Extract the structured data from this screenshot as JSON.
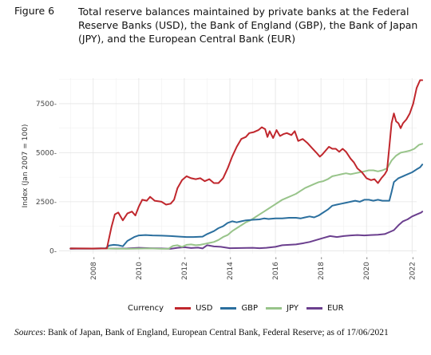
{
  "figure_label": "Figure 6",
  "figure_title": "Total reserve balances maintained by private banks at the Federal Reserve Banks (USD), the Bank of England (GBP), the Bank of Japan (JPY), and the European Central Bank (EUR)",
  "sources": {
    "label": "Sources",
    "text": ": Bank of Japan, Bank of England, European Central Bank, Federal Reserve; as of 17/06/2021"
  },
  "legend_title": "Currency",
  "chart_data": {
    "type": "line",
    "title": "",
    "xlabel": "",
    "ylabel": "Index (Jan 2007 = 100)",
    "xlim": [
      2006.5,
      2022.2
    ],
    "ylim": [
      -150,
      8800
    ],
    "x_ticks": [
      2008,
      2010,
      2012,
      2014,
      2016,
      2018,
      2020,
      2022
    ],
    "y_ticks": [
      0,
      2500,
      5000,
      7500
    ],
    "y_tick_labels": [
      "0-",
      "2500-",
      "5000-",
      "7500-"
    ],
    "grid": true,
    "legend_position": "bottom",
    "series": [
      {
        "name": "USD",
        "color": "#c0272d",
        "points": [
          [
            2007.0,
            120
          ],
          [
            2008.0,
            115
          ],
          [
            2008.6,
            120
          ],
          [
            2008.8,
            1200
          ],
          [
            2008.95,
            1850
          ],
          [
            2009.1,
            1950
          ],
          [
            2009.3,
            1550
          ],
          [
            2009.5,
            1900
          ],
          [
            2009.7,
            2000
          ],
          [
            2009.85,
            1800
          ],
          [
            2010.0,
            2250
          ],
          [
            2010.15,
            2600
          ],
          [
            2010.35,
            2550
          ],
          [
            2010.5,
            2750
          ],
          [
            2010.7,
            2550
          ],
          [
            2011.0,
            2500
          ],
          [
            2011.2,
            2350
          ],
          [
            2011.4,
            2400
          ],
          [
            2011.55,
            2600
          ],
          [
            2011.7,
            3200
          ],
          [
            2011.9,
            3600
          ],
          [
            2012.1,
            3800
          ],
          [
            2012.3,
            3700
          ],
          [
            2012.5,
            3650
          ],
          [
            2012.7,
            3700
          ],
          [
            2012.9,
            3550
          ],
          [
            2013.1,
            3650
          ],
          [
            2013.3,
            3450
          ],
          [
            2013.5,
            3450
          ],
          [
            2013.7,
            3700
          ],
          [
            2013.9,
            4200
          ],
          [
            2014.1,
            4800
          ],
          [
            2014.3,
            5300
          ],
          [
            2014.5,
            5700
          ],
          [
            2014.7,
            5800
          ],
          [
            2014.85,
            6000
          ],
          [
            2015.05,
            6050
          ],
          [
            2015.25,
            6150
          ],
          [
            2015.4,
            6300
          ],
          [
            2015.55,
            6200
          ],
          [
            2015.65,
            5800
          ],
          [
            2015.75,
            6100
          ],
          [
            2015.9,
            5750
          ],
          [
            2016.05,
            6150
          ],
          [
            2016.2,
            5850
          ],
          [
            2016.35,
            5950
          ],
          [
            2016.5,
            6000
          ],
          [
            2016.7,
            5900
          ],
          [
            2016.85,
            6100
          ],
          [
            2017.0,
            5600
          ],
          [
            2017.2,
            5700
          ],
          [
            2017.4,
            5500
          ],
          [
            2017.6,
            5250
          ],
          [
            2017.8,
            5000
          ],
          [
            2017.95,
            4800
          ],
          [
            2018.05,
            4900
          ],
          [
            2018.2,
            5100
          ],
          [
            2018.35,
            5300
          ],
          [
            2018.5,
            5200
          ],
          [
            2018.65,
            5200
          ],
          [
            2018.8,
            5050
          ],
          [
            2018.95,
            5200
          ],
          [
            2019.1,
            5050
          ],
          [
            2019.3,
            4700
          ],
          [
            2019.45,
            4500
          ],
          [
            2019.6,
            4200
          ],
          [
            2019.8,
            4000
          ],
          [
            2020.0,
            3700
          ],
          [
            2020.2,
            3600
          ],
          [
            2020.35,
            3650
          ],
          [
            2020.5,
            3450
          ],
          [
            2020.65,
            3700
          ],
          [
            2020.8,
            3900
          ],
          [
            2020.9,
            4100
          ],
          [
            2021.0,
            5300
          ],
          [
            2021.1,
            6500
          ],
          [
            2021.2,
            7000
          ],
          [
            2021.3,
            6600
          ],
          [
            2021.4,
            6500
          ],
          [
            2021.5,
            6250
          ],
          [
            2021.6,
            6500
          ],
          [
            2021.75,
            6700
          ],
          [
            2021.9,
            7000
          ],
          [
            2022.05,
            7500
          ],
          [
            2022.2,
            8300
          ],
          [
            2022.35,
            8700
          ],
          [
            2022.45,
            8700
          ]
        ]
      },
      {
        "name": "GBP",
        "color": "#2b6f9e",
        "points": [
          [
            2007.0,
            120
          ],
          [
            2008.0,
            115
          ],
          [
            2008.55,
            125
          ],
          [
            2008.7,
            270
          ],
          [
            2008.9,
            300
          ],
          [
            2009.1,
            280
          ],
          [
            2009.3,
            230
          ],
          [
            2009.5,
            500
          ],
          [
            2009.8,
            700
          ],
          [
            2010.0,
            780
          ],
          [
            2010.3,
            800
          ],
          [
            2010.6,
            780
          ],
          [
            2011.0,
            770
          ],
          [
            2011.4,
            750
          ],
          [
            2011.8,
            720
          ],
          [
            2012.1,
            700
          ],
          [
            2012.4,
            700
          ],
          [
            2012.8,
            720
          ],
          [
            2013.0,
            850
          ],
          [
            2013.3,
            1000
          ],
          [
            2013.5,
            1150
          ],
          [
            2013.7,
            1250
          ],
          [
            2013.9,
            1420
          ],
          [
            2014.1,
            1500
          ],
          [
            2014.3,
            1450
          ],
          [
            2014.5,
            1500
          ],
          [
            2014.7,
            1550
          ],
          [
            2015.0,
            1580
          ],
          [
            2015.3,
            1600
          ],
          [
            2015.5,
            1650
          ],
          [
            2015.7,
            1620
          ],
          [
            2016.0,
            1650
          ],
          [
            2016.3,
            1650
          ],
          [
            2016.6,
            1680
          ],
          [
            2016.9,
            1680
          ],
          [
            2017.1,
            1650
          ],
          [
            2017.3,
            1700
          ],
          [
            2017.5,
            1750
          ],
          [
            2017.7,
            1700
          ],
          [
            2017.9,
            1800
          ],
          [
            2018.1,
            1950
          ],
          [
            2018.3,
            2100
          ],
          [
            2018.5,
            2300
          ],
          [
            2018.7,
            2350
          ],
          [
            2018.9,
            2400
          ],
          [
            2019.1,
            2450
          ],
          [
            2019.3,
            2500
          ],
          [
            2019.5,
            2550
          ],
          [
            2019.7,
            2500
          ],
          [
            2019.9,
            2600
          ],
          [
            2020.1,
            2600
          ],
          [
            2020.3,
            2550
          ],
          [
            2020.5,
            2600
          ],
          [
            2020.7,
            2550
          ],
          [
            2020.9,
            2550
          ],
          [
            2021.0,
            2550
          ],
          [
            2021.1,
            3000
          ],
          [
            2021.2,
            3500
          ],
          [
            2021.4,
            3700
          ],
          [
            2021.6,
            3800
          ],
          [
            2021.8,
            3900
          ],
          [
            2022.0,
            4000
          ],
          [
            2022.2,
            4150
          ],
          [
            2022.35,
            4250
          ],
          [
            2022.45,
            4400
          ]
        ]
      },
      {
        "name": "JPY",
        "color": "#98c48a",
        "points": [
          [
            2007.0,
            120
          ],
          [
            2007.6,
            110
          ],
          [
            2008.0,
            110
          ],
          [
            2008.6,
            115
          ],
          [
            2008.8,
            110
          ],
          [
            2009.0,
            105
          ],
          [
            2009.5,
            100
          ],
          [
            2010.0,
            110
          ],
          [
            2010.5,
            120
          ],
          [
            2011.0,
            100
          ],
          [
            2011.3,
            100
          ],
          [
            2011.5,
            250
          ],
          [
            2011.7,
            280
          ],
          [
            2011.9,
            200
          ],
          [
            2012.1,
            300
          ],
          [
            2012.3,
            320
          ],
          [
            2012.5,
            280
          ],
          [
            2012.7,
            300
          ],
          [
            2012.9,
            350
          ],
          [
            2013.1,
            400
          ],
          [
            2013.3,
            450
          ],
          [
            2013.5,
            550
          ],
          [
            2013.7,
            700
          ],
          [
            2013.9,
            800
          ],
          [
            2014.1,
            1000
          ],
          [
            2014.3,
            1150
          ],
          [
            2014.5,
            1300
          ],
          [
            2014.7,
            1450
          ],
          [
            2014.9,
            1550
          ],
          [
            2015.1,
            1700
          ],
          [
            2015.3,
            1850
          ],
          [
            2015.5,
            2000
          ],
          [
            2015.7,
            2150
          ],
          [
            2015.9,
            2300
          ],
          [
            2016.1,
            2450
          ],
          [
            2016.3,
            2600
          ],
          [
            2016.5,
            2700
          ],
          [
            2016.7,
            2800
          ],
          [
            2016.9,
            2900
          ],
          [
            2017.1,
            3050
          ],
          [
            2017.3,
            3200
          ],
          [
            2017.5,
            3300
          ],
          [
            2017.7,
            3400
          ],
          [
            2017.9,
            3500
          ],
          [
            2018.1,
            3550
          ],
          [
            2018.3,
            3650
          ],
          [
            2018.5,
            3800
          ],
          [
            2018.7,
            3850
          ],
          [
            2018.9,
            3900
          ],
          [
            2019.1,
            3950
          ],
          [
            2019.3,
            3900
          ],
          [
            2019.5,
            3950
          ],
          [
            2019.7,
            4000
          ],
          [
            2019.9,
            4050
          ],
          [
            2020.1,
            4100
          ],
          [
            2020.3,
            4100
          ],
          [
            2020.5,
            4050
          ],
          [
            2020.7,
            4100
          ],
          [
            2020.9,
            4200
          ],
          [
            2021.1,
            4600
          ],
          [
            2021.3,
            4850
          ],
          [
            2021.5,
            5000
          ],
          [
            2021.7,
            5050
          ],
          [
            2021.9,
            5100
          ],
          [
            2022.1,
            5200
          ],
          [
            2022.3,
            5400
          ],
          [
            2022.45,
            5450
          ]
        ]
      },
      {
        "name": "EUR",
        "color": "#6b3f8e",
        "points": [
          [
            2007.0,
            100
          ],
          [
            2007.5,
            110
          ],
          [
            2008.0,
            105
          ],
          [
            2008.5,
            115
          ],
          [
            2009.0,
            110
          ],
          [
            2009.5,
            120
          ],
          [
            2010.0,
            150
          ],
          [
            2010.5,
            130
          ],
          [
            2011.0,
            120
          ],
          [
            2011.4,
            100
          ],
          [
            2011.7,
            150
          ],
          [
            2012.0,
            180
          ],
          [
            2012.3,
            140
          ],
          [
            2012.6,
            160
          ],
          [
            2012.8,
            120
          ],
          [
            2013.0,
            280
          ],
          [
            2013.3,
            220
          ],
          [
            2013.6,
            200
          ],
          [
            2014.0,
            130
          ],
          [
            2014.5,
            140
          ],
          [
            2015.0,
            150
          ],
          [
            2015.3,
            130
          ],
          [
            2015.6,
            150
          ],
          [
            2016.0,
            200
          ],
          [
            2016.3,
            280
          ],
          [
            2016.6,
            300
          ],
          [
            2016.9,
            320
          ],
          [
            2017.2,
            380
          ],
          [
            2017.5,
            450
          ],
          [
            2017.8,
            550
          ],
          [
            2018.1,
            650
          ],
          [
            2018.4,
            750
          ],
          [
            2018.7,
            700
          ],
          [
            2019.0,
            750
          ],
          [
            2019.3,
            780
          ],
          [
            2019.6,
            800
          ],
          [
            2019.9,
            780
          ],
          [
            2020.2,
            800
          ],
          [
            2020.5,
            820
          ],
          [
            2020.8,
            850
          ],
          [
            2021.0,
            950
          ],
          [
            2021.2,
            1050
          ],
          [
            2021.4,
            1300
          ],
          [
            2021.6,
            1500
          ],
          [
            2021.8,
            1600
          ],
          [
            2022.0,
            1750
          ],
          [
            2022.2,
            1850
          ],
          [
            2022.4,
            1950
          ],
          [
            2022.45,
            2000
          ]
        ]
      }
    ]
  }
}
